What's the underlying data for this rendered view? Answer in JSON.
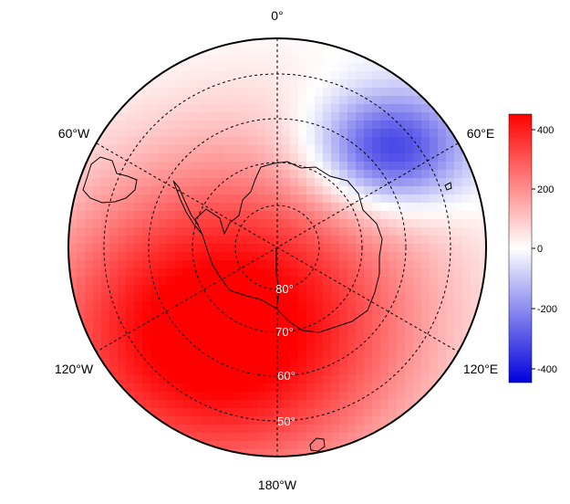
{
  "map": {
    "projection": "south-polar-stereographic",
    "longitude_labels": [
      {
        "id": "lon-0",
        "text": "0°"
      },
      {
        "id": "lon-60e",
        "text": "60°E"
      },
      {
        "id": "lon-120e",
        "text": "120°E"
      },
      {
        "id": "lon-180w",
        "text": "180°W"
      },
      {
        "id": "lon-120w",
        "text": "120°W"
      },
      {
        "id": "lon-60w",
        "text": "60°W"
      }
    ],
    "latitude_labels": [
      {
        "id": "lat-80",
        "text": "80°"
      },
      {
        "id": "lat-70",
        "text": "70°"
      },
      {
        "id": "lat-60",
        "text": "60°"
      },
      {
        "id": "lat-50",
        "text": "50°"
      }
    ],
    "field_colors": {
      "positive": "#ff0000",
      "negative": "#0000dd",
      "zero": "#ffffff"
    },
    "grid_style": "dashed"
  },
  "colorbar": {
    "min": -450,
    "max": 450,
    "ticks": [
      "400",
      "200",
      "0",
      "-200",
      "-400"
    ],
    "colors": {
      "top": "#ff0000",
      "middle": "#ffffff",
      "bottom": "#0000dd"
    }
  }
}
